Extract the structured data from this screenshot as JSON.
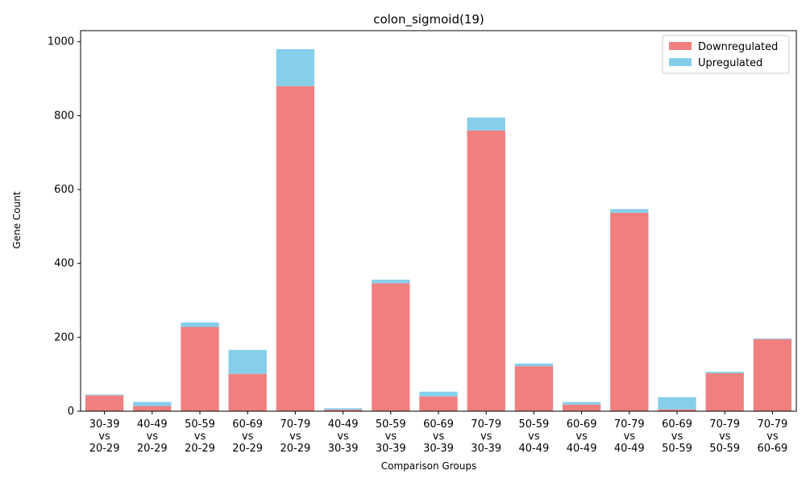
{
  "chart_data": {
    "type": "bar",
    "stacked": true,
    "title": "colon_sigmoid(19)",
    "xlabel": "Comparison Groups",
    "ylabel": "Gene Count",
    "ylim": [
      0,
      1030
    ],
    "yticks": [
      0,
      200,
      400,
      600,
      800,
      1000
    ],
    "grid": false,
    "legend_position": "top-right",
    "categories": [
      [
        "30-39",
        "vs",
        "20-29"
      ],
      [
        "40-49",
        "vs",
        "20-29"
      ],
      [
        "50-59",
        "vs",
        "20-29"
      ],
      [
        "60-69",
        "vs",
        "20-29"
      ],
      [
        "70-79",
        "vs",
        "20-29"
      ],
      [
        "40-49",
        "vs",
        "30-39"
      ],
      [
        "50-59",
        "vs",
        "30-39"
      ],
      [
        "60-69",
        "vs",
        "30-39"
      ],
      [
        "70-79",
        "vs",
        "30-39"
      ],
      [
        "50-59",
        "vs",
        "40-49"
      ],
      [
        "60-69",
        "vs",
        "40-49"
      ],
      [
        "70-79",
        "vs",
        "40-49"
      ],
      [
        "60-69",
        "vs",
        "50-59"
      ],
      [
        "70-79",
        "vs",
        "50-59"
      ],
      [
        "70-79",
        "vs",
        "60-69"
      ]
    ],
    "series": [
      {
        "name": "Downregulated",
        "color": "#f08080",
        "values": [
          43,
          14,
          228,
          101,
          880,
          4,
          346,
          40,
          760,
          122,
          18,
          537,
          5,
          103,
          195
        ]
      },
      {
        "name": "Upregulated",
        "color": "#87ceeb",
        "values": [
          2,
          11,
          12,
          65,
          100,
          4,
          10,
          13,
          35,
          7,
          7,
          10,
          33,
          4,
          2
        ]
      }
    ]
  }
}
